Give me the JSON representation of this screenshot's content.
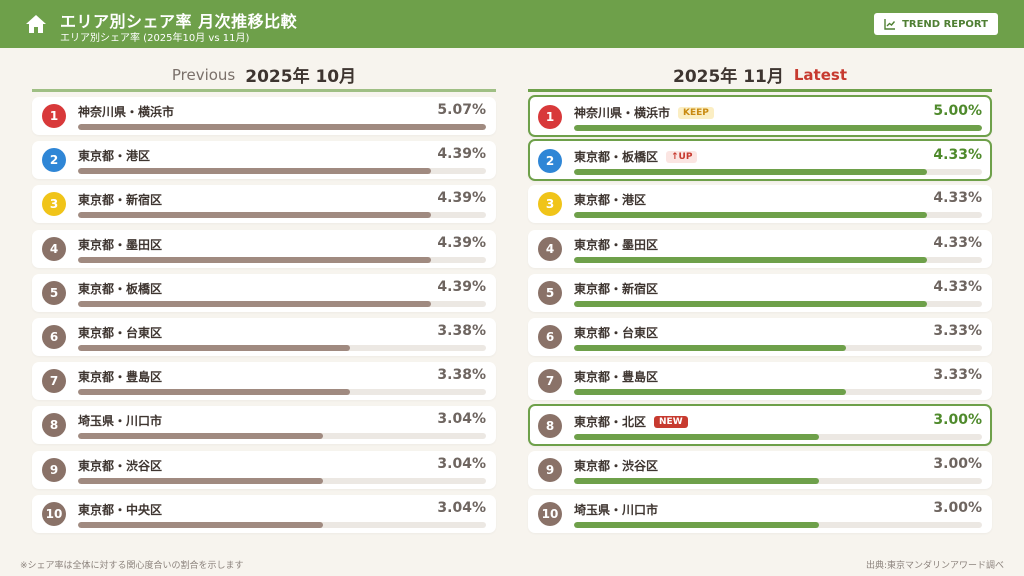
{
  "header": {
    "title": "エリア別シェア率 月次推移比較",
    "subtitle": "エリア別シェア率 (2025年10月 vs 11月)",
    "button_label": "TREND REPORT"
  },
  "columns": {
    "previous": {
      "tag": "Previous",
      "month": "2025年 10月"
    },
    "latest": {
      "month": "2025年 11月",
      "tag": "Latest"
    }
  },
  "colors": {
    "rank1": "#d8393a",
    "rank2": "#2f86d6",
    "rank3": "#f0c419",
    "rank_other": "#8a7268",
    "bar_previous": "#a08a80",
    "bar_latest": "#6ea04a",
    "accent": "#6ea04a"
  },
  "chart_data": [
    {
      "type": "bar",
      "title": "2025年 10月",
      "categories": [
        "神奈川県・横浜市",
        "東京都・港区",
        "東京都・新宿区",
        "東京都・墨田区",
        "東京都・板橋区",
        "東京都・台東区",
        "東京都・豊島区",
        "埼玉県・川口市",
        "東京都・渋谷区",
        "東京都・中央区"
      ],
      "values": [
        5.07,
        4.39,
        4.39,
        4.39,
        4.39,
        3.38,
        3.38,
        3.04,
        3.04,
        3.04
      ],
      "value_labels": [
        "5.07%",
        "4.39%",
        "4.39%",
        "4.39%",
        "4.39%",
        "3.38%",
        "3.38%",
        "3.04%",
        "3.04%",
        "3.04%"
      ],
      "ranks": [
        "1",
        "2",
        "3",
        "4",
        "5",
        "6",
        "7",
        "8",
        "9",
        "10"
      ],
      "tags": [
        "",
        "",
        "",
        "",
        "",
        "",
        "",
        "",
        "",
        ""
      ],
      "highlight": [
        false,
        false,
        false,
        false,
        false,
        false,
        false,
        false,
        false,
        false
      ],
      "xlim": [
        0,
        5.07
      ]
    },
    {
      "type": "bar",
      "title": "2025年 11月",
      "categories": [
        "神奈川県・横浜市",
        "東京都・板橋区",
        "東京都・港区",
        "東京都・墨田区",
        "東京都・新宿区",
        "東京都・台東区",
        "東京都・豊島区",
        "東京都・北区",
        "東京都・渋谷区",
        "埼玉県・川口市"
      ],
      "values": [
        5.0,
        4.33,
        4.33,
        4.33,
        4.33,
        3.33,
        3.33,
        3.0,
        3.0,
        3.0
      ],
      "value_labels": [
        "5.00%",
        "4.33%",
        "4.33%",
        "4.33%",
        "4.33%",
        "3.33%",
        "3.33%",
        "3.00%",
        "3.00%",
        "3.00%"
      ],
      "ranks": [
        "1",
        "2",
        "3",
        "4",
        "5",
        "6",
        "7",
        "8",
        "9",
        "10"
      ],
      "tags": [
        "KEEP",
        "↑UP",
        "",
        "",
        "",
        "",
        "",
        "NEW",
        "",
        ""
      ],
      "highlight": [
        true,
        true,
        false,
        false,
        false,
        false,
        false,
        true,
        false,
        false
      ],
      "xlim": [
        0,
        5.0
      ]
    }
  ],
  "footer": {
    "note": "※シェア率は全体に対する関心度合いの割合を示します",
    "source": "出典:東京マンダリンアワード調べ"
  }
}
